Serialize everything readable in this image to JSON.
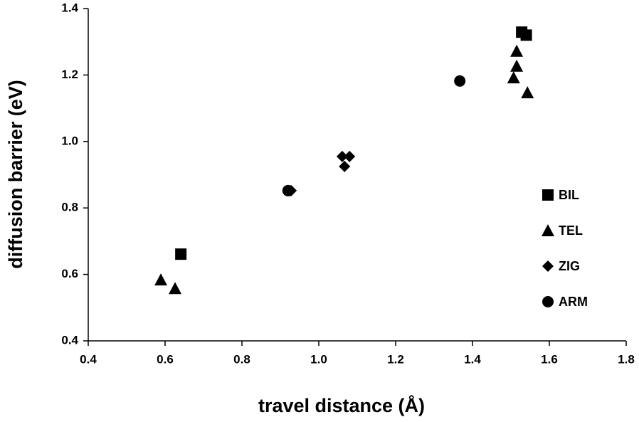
{
  "chart_data": {
    "type": "scatter",
    "x_label": "travel distance (Å)",
    "y_label": "diffusion barrier (eV)",
    "xlim": [
      0.4,
      1.8
    ],
    "xticks": [
      0.4,
      0.6,
      0.8,
      {
        "value": 1,
        "label": "1.0"
      },
      1.2,
      1.4,
      1.6,
      1.8
    ],
    "ylim": [
      0.4,
      1.4
    ],
    "yticks": [
      0.4,
      0.6,
      0.8,
      {
        "value": 1,
        "label": "1.0"
      },
      1.2,
      1.4
    ],
    "legend": "right",
    "series": [
      {
        "name": "BIL",
        "color": "#000000",
        "marker": "square",
        "x": [
          0.641,
          1.528,
          1.54
        ],
        "values": [
          0.661,
          1.329,
          1.32
        ]
      },
      {
        "name": "TEL",
        "color": "#000000",
        "marker": "triangle",
        "x": [
          0.589,
          0.626,
          1.515,
          1.515,
          1.507,
          1.543
        ],
        "values": [
          0.584,
          0.558,
          1.272,
          1.227,
          1.192,
          1.147
        ]
      },
      {
        "name": "ZIG",
        "color": "#000000",
        "marker": "diamond",
        "x": [
          0.928,
          1.061,
          1.08,
          1.067
        ],
        "values": [
          0.852,
          0.955,
          0.955,
          0.925
        ]
      },
      {
        "name": "ARM",
        "color": "#000000",
        "marker": "circle",
        "x": [
          0.92,
          1.367
        ],
        "values": [
          0.852,
          1.182
        ]
      }
    ]
  }
}
